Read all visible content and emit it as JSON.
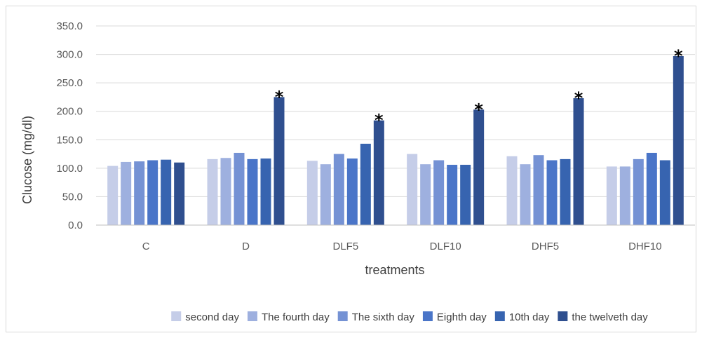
{
  "chart_data": {
    "type": "bar",
    "title": "",
    "xlabel": "treatments",
    "ylabel": "Clucose (mg/dl)",
    "ylim": [
      0,
      350
    ],
    "yticks": [
      "0.0",
      "50.0",
      "100.0",
      "150.0",
      "200.0",
      "250.0",
      "300.0",
      "350.0"
    ],
    "grid": true,
    "legend_position": "bottom",
    "categories": [
      "C",
      "D",
      "DLF5",
      "DLF10",
      "DHF5",
      "DHF10"
    ],
    "series": [
      {
        "name": "second day",
        "color": "#c5cde8",
        "values": [
          104,
          116,
          113,
          125,
          121,
          103
        ]
      },
      {
        "name": "The fourth day",
        "color": "#9eb0df",
        "values": [
          111,
          118,
          107,
          107,
          107,
          103
        ]
      },
      {
        "name": "The sixth day",
        "color": "#7592d4",
        "values": [
          112,
          127,
          125,
          114,
          123,
          116
        ]
      },
      {
        "name": "Eighth day",
        "color": "#4a75c8",
        "values": [
          114,
          116,
          117,
          106,
          114,
          127
        ]
      },
      {
        "name": "10th day",
        "color": "#3764b0",
        "values": [
          115,
          117,
          143,
          106,
          116,
          114
        ]
      },
      {
        "name": "the twelveth day",
        "color": "#2f4f8f",
        "values": [
          110,
          225,
          184,
          203,
          223,
          297
        ]
      }
    ],
    "annotations": [
      {
        "category": "D",
        "series": "the twelveth day",
        "text": "*"
      },
      {
        "category": "DLF5",
        "series": "the twelveth day",
        "text": "*"
      },
      {
        "category": "DLF10",
        "series": "the twelveth day",
        "text": "*"
      },
      {
        "category": "DHF5",
        "series": "the twelveth day",
        "text": "*"
      },
      {
        "category": "DHF10",
        "series": "the twelveth day",
        "text": "*"
      }
    ]
  }
}
